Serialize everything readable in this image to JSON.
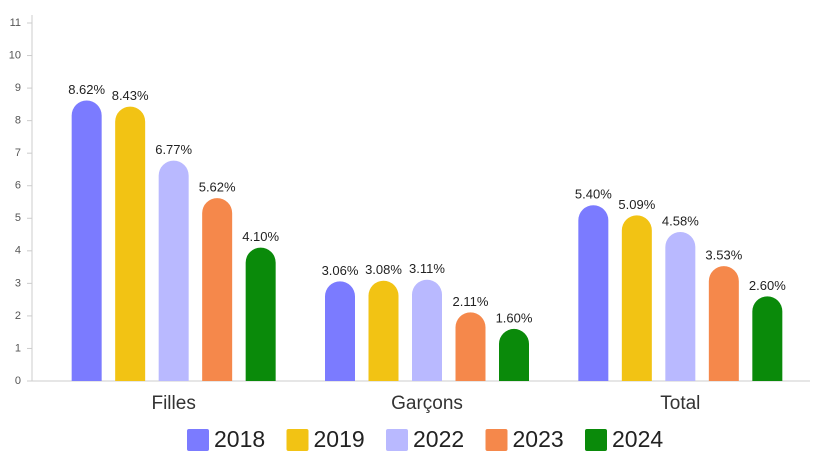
{
  "chart_data": {
    "type": "bar",
    "categories": [
      "Filles",
      "Garçons",
      "Total"
    ],
    "series": [
      {
        "name": "2018",
        "color": "#7b7bff",
        "values": [
          8.62,
          3.06,
          5.4
        ],
        "value_labels": [
          "8.62%",
          "3.06%",
          "5.40%"
        ]
      },
      {
        "name": "2019",
        "color": "#f2c314",
        "values": [
          8.43,
          3.08,
          5.09
        ],
        "value_labels": [
          "8.43%",
          "3.08%",
          "5.09%"
        ]
      },
      {
        "name": "2022",
        "color": "#b9b9ff",
        "values": [
          6.77,
          3.11,
          4.58
        ],
        "value_labels": [
          "6.77%",
          "3.11%",
          "4.58%"
        ]
      },
      {
        "name": "2023",
        "color": "#f5884b",
        "values": [
          5.62,
          2.11,
          3.53
        ],
        "value_labels": [
          "5.62%",
          "2.11%",
          "3.53%"
        ]
      },
      {
        "name": "2024",
        "color": "#0a8a0a",
        "values": [
          4.1,
          1.6,
          2.6
        ],
        "value_labels": [
          "4.10%",
          "1.60%",
          "2.60%"
        ]
      }
    ],
    "ylim": [
      0,
      11
    ],
    "yticks": [
      0,
      1,
      2,
      3,
      4,
      5,
      6,
      7,
      8,
      9,
      10,
      11
    ],
    "grid": false,
    "legend": "bottom"
  }
}
